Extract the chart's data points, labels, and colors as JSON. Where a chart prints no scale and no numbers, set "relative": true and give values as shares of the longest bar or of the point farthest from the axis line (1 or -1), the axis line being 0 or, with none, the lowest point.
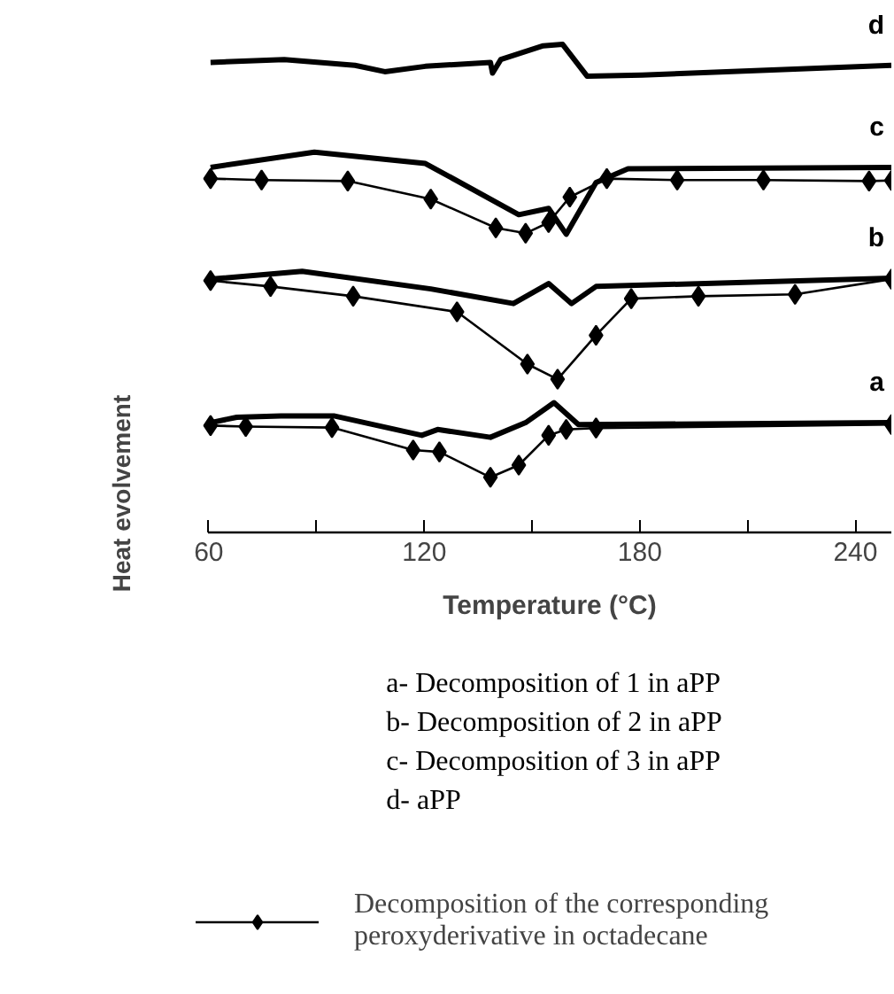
{
  "chart_data": {
    "type": "line",
    "relative": true,
    "xlabel": "Temperature (°C)",
    "ylabel": "Heat evolvement",
    "xlim": [
      60,
      250
    ],
    "xticks": [
      60,
      {
        "value": 90,
        "label": null
      },
      120,
      {
        "value": 150,
        "label": null
      },
      180,
      {
        "value": 210,
        "label": null
      },
      240
    ],
    "grid": false,
    "legend": "bottom",
    "line_style": "solid",
    "series": [
      {
        "color": "#000000",
        "marker": "none",
        "x": [
          60.5,
          81,
          100.7,
          109,
          120.3,
          138.4,
          139,
          141.3,
          153.1,
          158.5,
          165.3,
          180.6,
          212,
          250
        ],
        "values": [
          0.963,
          0.969,
          0.957,
          0.944,
          0.955,
          0.963,
          0.941,
          0.969,
          0.997,
          1.0,
          0.935,
          0.937,
          0.946,
          0.957
        ]
      },
      {
        "color": "#000000",
        "marker": "none",
        "x": [
          60.5,
          89.4,
          120.3,
          146.3,
          154.6,
          159.5,
          167.8,
          176.7,
          250
        ],
        "values": [
          0.748,
          0.779,
          0.756,
          0.651,
          0.664,
          0.611,
          0.717,
          0.745,
          0.748
        ]
      },
      {
        "color": "#000000",
        "marker": "diamond",
        "x": [
          60.5,
          74.7,
          98.7,
          121.8,
          139.9,
          148.2,
          154.6,
          160.5,
          170.8,
          190.4,
          214.4,
          243.8,
          250
        ],
        "values": [
          0.725,
          0.722,
          0.72,
          0.683,
          0.624,
          0.613,
          0.635,
          0.687,
          0.725,
          0.722,
          0.722,
          0.72,
          0.721
        ]
      },
      {
        "color": "#000000",
        "marker": "none",
        "x": [
          60.5,
          86,
          121.8,
          144.8,
          154.6,
          161,
          167.8,
          250
        ],
        "values": [
          0.519,
          0.535,
          0.499,
          0.469,
          0.51,
          0.469,
          0.504,
          0.521
        ]
      },
      {
        "color": "#000000",
        "marker": "diamond",
        "x": [
          60.5,
          77.2,
          100.2,
          129.1,
          148.7,
          157.1,
          167.8,
          177.6,
          196.3,
          223.2,
          250
        ],
        "values": [
          0.516,
          0.504,
          0.484,
          0.452,
          0.345,
          0.314,
          0.404,
          0.479,
          0.484,
          0.488,
          0.519
        ]
      },
      {
        "color": "#000000",
        "marker": "none",
        "x": [
          60.5,
          67.8,
          80.1,
          94.8,
          119.3,
          123.7,
          138.4,
          148.2,
          156.1,
          162.9,
          250
        ],
        "values": [
          0.225,
          0.236,
          0.239,
          0.239,
          0.199,
          0.211,
          0.195,
          0.225,
          0.266,
          0.221,
          0.225
        ]
      },
      {
        "name": "Decomposition of the corresponding peroxyderivative in octadecane",
        "color": "#000000",
        "marker": "diamond",
        "x": [
          60.5,
          70.3,
          94.3,
          116.9,
          124.2,
          138.4,
          146.3,
          154.6,
          159.5,
          167.8,
          250
        ],
        "values": [
          0.219,
          0.217,
          0.215,
          0.169,
          0.165,
          0.113,
          0.138,
          0.199,
          0.211,
          0.214,
          0.221
        ]
      }
    ],
    "annotations": [
      "d",
      "c",
      "b",
      "a",
      "a- Decomposition of 1 in aPP",
      "b- Decomposition of 2 in aPP",
      "c- Decomposition of 3 in aPP",
      "d- aPP"
    ]
  }
}
